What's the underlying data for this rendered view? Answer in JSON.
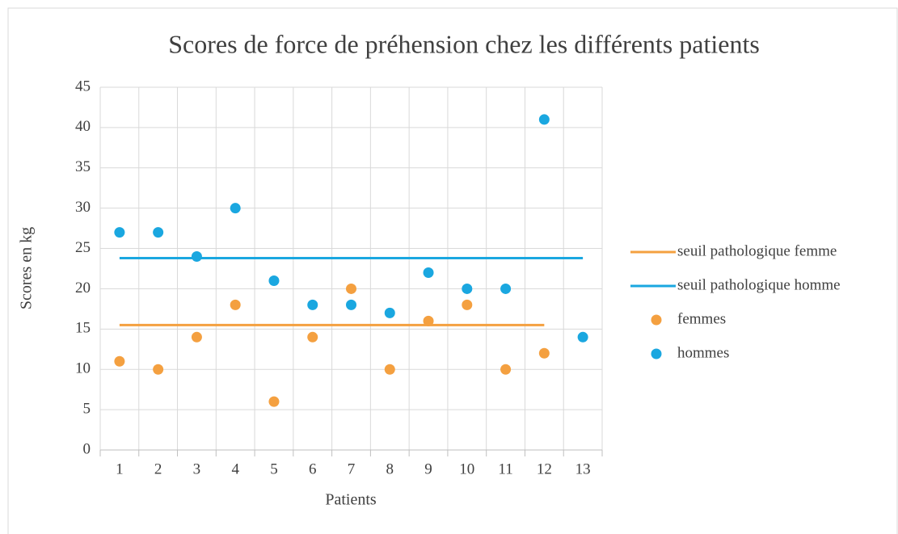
{
  "chart_data": {
    "type": "combo",
    "title": "Scores de force de préhension chez les différents patients",
    "x_label": "Patients",
    "y_label": "Scores en kg",
    "categories": [
      "1",
      "2",
      "3",
      "4",
      "5",
      "6",
      "7",
      "8",
      "9",
      "10",
      "11",
      "12",
      "13"
    ],
    "series": [
      {
        "name": "seuil pathologique femme",
        "type": "line",
        "color": "#f4a040",
        "values": [
          15.5,
          15.5,
          15.5,
          15.5,
          15.5,
          15.5,
          15.5,
          15.5,
          15.5,
          15.5,
          15.5,
          15.5,
          null
        ]
      },
      {
        "name": "seuil pathologique homme",
        "type": "line",
        "color": "#1aa7e0",
        "values": [
          23.8,
          23.8,
          23.8,
          23.8,
          23.8,
          23.8,
          23.8,
          23.8,
          23.8,
          23.8,
          23.8,
          23.8,
          23.8
        ]
      },
      {
        "name": "femmes",
        "type": "scatter",
        "color": "#f4a040",
        "values": [
          11,
          10,
          14,
          18,
          6,
          14,
          20,
          10,
          16,
          18,
          10,
          12,
          null
        ]
      },
      {
        "name": "hommes",
        "type": "scatter",
        "color": "#1aa7e0",
        "values": [
          27,
          27,
          24,
          30,
          21,
          18,
          18,
          17,
          22,
          20,
          20,
          41,
          14
        ]
      }
    ],
    "ylim": [
      0,
      45
    ],
    "yticks": [
      0,
      5,
      10,
      15,
      20,
      25,
      30,
      35,
      40,
      45
    ],
    "grid": true,
    "legend": "right"
  }
}
